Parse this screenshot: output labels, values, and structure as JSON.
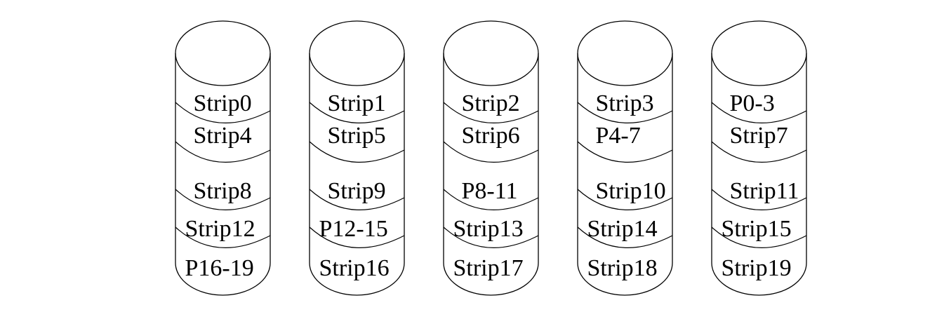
{
  "diagram": {
    "disks": [
      {
        "strips": [
          "Strip0",
          "Strip4",
          "Strip8",
          "Strip12",
          "P16-19"
        ]
      },
      {
        "strips": [
          "Strip1",
          "Strip5",
          "Strip9",
          "P12-15",
          "Strip16"
        ]
      },
      {
        "strips": [
          "Strip2",
          "Strip6",
          "P8-11",
          "Strip13",
          "Strip17"
        ]
      },
      {
        "strips": [
          "Strip3",
          "P4-7",
          "Strip10",
          "Strip14",
          "Strip18"
        ]
      },
      {
        "strips": [
          "P0-3",
          "Strip7",
          "Strip11",
          "Strip15",
          "Strip19"
        ]
      }
    ]
  }
}
